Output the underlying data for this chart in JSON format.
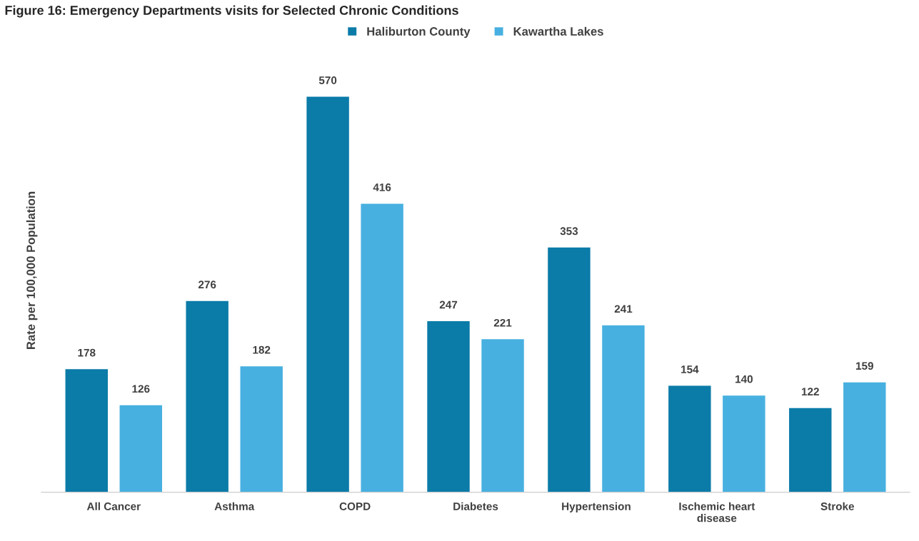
{
  "chart_data": {
    "type": "bar",
    "title": "Figure 16: Emergency Departments visits for Selected Chronic Conditions",
    "ylabel": "Rate per 100,000 Population",
    "categories": [
      "All Cancer",
      "Asthma",
      "COPD",
      "Diabetes",
      "Hypertension",
      "Ischemic heart\ndisease",
      "Stroke"
    ],
    "series": [
      {
        "name": "Haliburton County",
        "color": "#0b7ba8",
        "values": [
          178,
          276,
          570,
          247,
          353,
          154,
          122
        ]
      },
      {
        "name": "Kawartha Lakes",
        "color": "#47b0e0",
        "values": [
          126,
          182,
          416,
          221,
          241,
          140,
          159
        ]
      }
    ],
    "data_labels": true,
    "legend": "top",
    "tick_labels": "x"
  }
}
